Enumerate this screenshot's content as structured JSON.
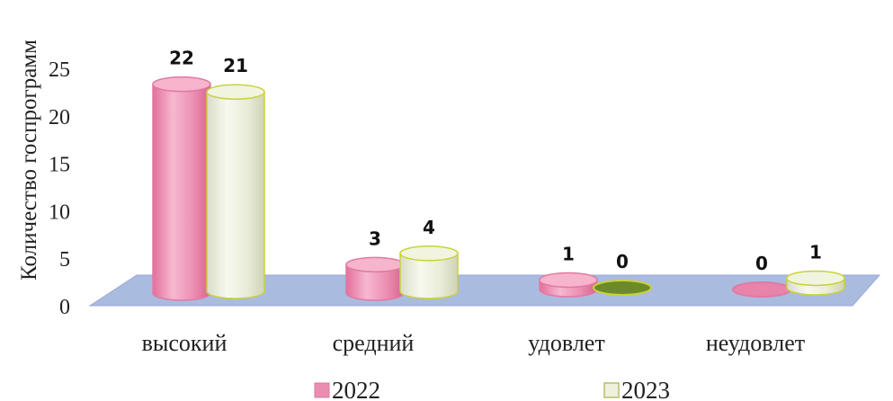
{
  "chart_data": {
    "type": "bar",
    "title": "",
    "xlabel": "",
    "ylabel": "Количество госпрограмм",
    "ylim": [
      0,
      25
    ],
    "yticks": [
      0,
      5,
      10,
      15,
      20,
      25
    ],
    "categories": [
      "высокий",
      "средний",
      "удовлет",
      "неудовлет"
    ],
    "series": [
      {
        "name": "2022",
        "values": [
          22,
          3,
          1,
          0
        ],
        "color": "#f2a0c0"
      },
      {
        "name": "2023",
        "values": [
          21,
          4,
          0,
          1
        ],
        "color": "#eef2dc",
        "edge": "#c8d23a"
      }
    ],
    "floor_color": "#a8b8dc",
    "legend_position": "bottom"
  }
}
